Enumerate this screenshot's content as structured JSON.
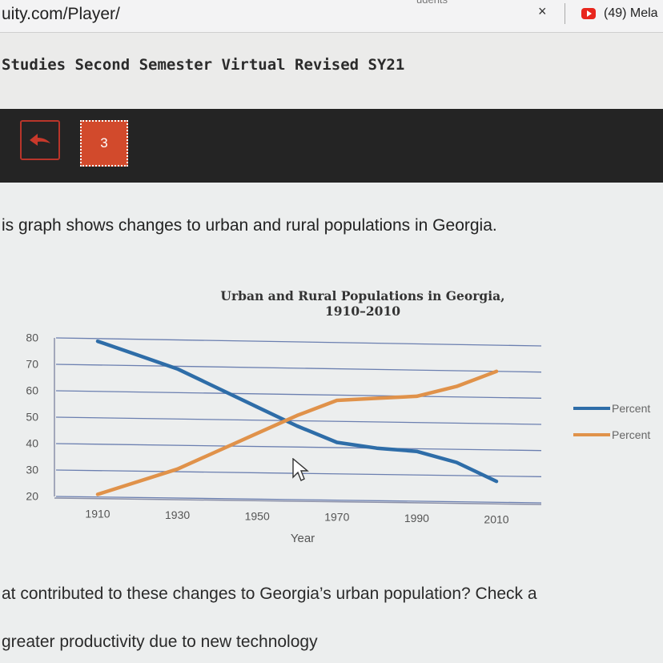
{
  "browser": {
    "url": "uity.com/Player/",
    "tab_fragment": "udents",
    "other_tab": "(49) Mela",
    "close_label": "×"
  },
  "course": {
    "title": "Studies Second Semester Virtual Revised SY21"
  },
  "nav": {
    "question_number": "3"
  },
  "content": {
    "intro": "is graph shows changes to urban and rural populations in Georgia.",
    "question": "at contributed to these changes to Georgia’s urban population? Check a",
    "option1": "greater productivity due to new technology"
  },
  "chart_data": {
    "type": "line",
    "title": "Urban and Rural Populations in Georgia, 1910–2010",
    "title_line1": "Urban and Rural Populations in Georgia,",
    "title_line2": "1910–2010",
    "xlabel": "Year",
    "ylabel": "",
    "x_ticks": [
      "1910",
      "1930",
      "1950",
      "1970",
      "1990",
      "2010"
    ],
    "y_ticks": [
      "80",
      "70",
      "60",
      "50",
      "40",
      "30",
      "20"
    ],
    "ylim": [
      20,
      80
    ],
    "grid": true,
    "legend_position": "right",
    "x": [
      1910,
      1920,
      1930,
      1940,
      1950,
      1960,
      1970,
      1980,
      1990,
      2000,
      2010
    ],
    "series": [
      {
        "name": "Percent",
        "color": "#2e6da8",
        "values": [
          79,
          74,
          69,
          62,
          55,
          48,
          42,
          40,
          39,
          35,
          28
        ]
      },
      {
        "name": "Percent",
        "color": "#e0924a",
        "values": [
          21,
          26,
          31,
          38,
          45,
          52,
          58,
          59,
          60,
          64,
          70
        ]
      }
    ]
  },
  "colors": {
    "nav_bg": "#242424",
    "accent": "#d24a2c",
    "rural_line": "#2e6da8",
    "urban_line": "#e0924a"
  }
}
